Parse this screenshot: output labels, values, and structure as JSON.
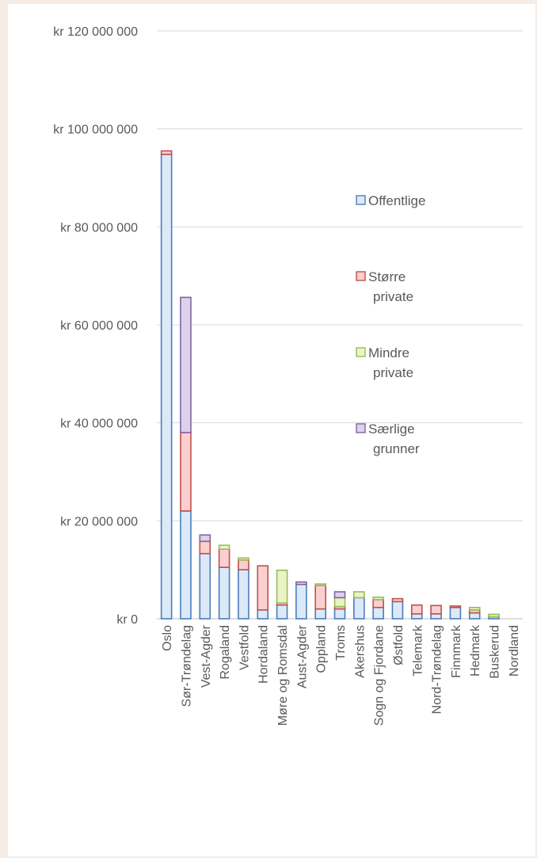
{
  "chart_data": {
    "type": "bar",
    "stacked": true,
    "title": "",
    "xlabel": "",
    "ylabel": "",
    "ylim": [
      0,
      120000000
    ],
    "yticks": [
      {
        "value": 0,
        "label": "kr 0"
      },
      {
        "value": 20000000,
        "label": "kr 20 000 000"
      },
      {
        "value": 40000000,
        "label": "kr 40 000 000"
      },
      {
        "value": 60000000,
        "label": "kr 60 000 000"
      },
      {
        "value": 80000000,
        "label": "kr 80 000 000"
      },
      {
        "value": 100000000,
        "label": "kr 100 000 000"
      },
      {
        "value": 120000000,
        "label": "kr 120 000 000"
      }
    ],
    "grid": true,
    "legend_position": "right",
    "categories": [
      "Oslo",
      "Sør-Trøndelag",
      "Vest-Agder",
      "Rogaland",
      "Vestfold",
      "Hordaland",
      "Møre og Romsdal",
      "Aust-Agder",
      "Oppland",
      "Troms",
      "Akershus",
      "Sogn og Fjordane",
      "Østfold",
      "Telemark",
      "Nord-Trøndelag",
      "Finnmark",
      "Hedmark",
      "Buskerud",
      "Nordland"
    ],
    "series": [
      {
        "name": "Offentlige",
        "color": "#4a7ebb",
        "fill": "#dce9f8",
        "values": [
          94800000,
          22000000,
          13300000,
          10500000,
          10000000,
          1800000,
          2800000,
          7000000,
          2000000,
          2000000,
          4300000,
          2300000,
          3500000,
          1000000,
          1000000,
          2300000,
          1200000,
          400000,
          0
        ]
      },
      {
        "name": "Større private",
        "color": "#c0504d",
        "fill": "#f9d0cf",
        "values": [
          700000,
          16000000,
          2500000,
          3700000,
          2000000,
          9000000,
          400000,
          0,
          4800000,
          500000,
          0,
          1600000,
          600000,
          1800000,
          1700000,
          300000,
          600000,
          0,
          0
        ]
      },
      {
        "name": "Mindre private",
        "color": "#9bbb59",
        "fill": "#e9f5c8",
        "values": [
          0,
          0,
          0,
          800000,
          400000,
          0,
          6700000,
          0,
          300000,
          1800000,
          1200000,
          500000,
          0,
          0,
          0,
          0,
          500000,
          500000,
          0
        ]
      },
      {
        "name": "Særlige grunner",
        "color": "#8064a2",
        "fill": "#ddd2ea",
        "values": [
          0,
          27600000,
          1300000,
          0,
          0,
          0,
          0,
          500000,
          0,
          1200000,
          0,
          0,
          0,
          0,
          0,
          0,
          0,
          0,
          0
        ]
      }
    ],
    "legend_labels": [
      {
        "line1": "Offentlige",
        "line2": ""
      },
      {
        "line1": "Større",
        "line2": "private"
      },
      {
        "line1": "Mindre",
        "line2": "private"
      },
      {
        "line1": "Særlige",
        "line2": "grunner"
      }
    ]
  }
}
